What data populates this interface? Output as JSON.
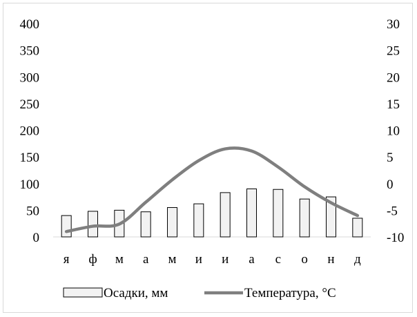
{
  "chart_data": {
    "type": "bar+line",
    "categories": [
      "я",
      "ф",
      "м",
      "а",
      "м",
      "и",
      "и",
      "а",
      "с",
      "о",
      "н",
      "д"
    ],
    "series": [
      {
        "name": "Осадки, мм",
        "type": "bar",
        "axis": "left",
        "values": [
          40,
          48,
          50,
          47,
          55,
          62,
          83,
          90,
          89,
          71,
          75,
          35
        ]
      },
      {
        "name": "Температура, °С",
        "type": "line",
        "axis": "right",
        "values": [
          -9,
          -8,
          -7.6,
          -3.5,
          0.7,
          4.3,
          6.5,
          6.1,
          3.1,
          -0.6,
          -3.6,
          -6
        ]
      }
    ],
    "y_left": {
      "min": 0,
      "max": 400,
      "ticks": [
        0,
        50,
        100,
        150,
        200,
        250,
        300,
        350,
        400
      ]
    },
    "y_right": {
      "min": -10,
      "max": 30,
      "ticks": [
        -10,
        -5,
        0,
        5,
        10,
        15,
        20,
        25,
        30
      ]
    },
    "grid": false,
    "legend_position": "bottom",
    "colors": {
      "bar_fill": "#f2f2f2",
      "bar_stroke": "#000000",
      "line": "#7f7f7f"
    }
  }
}
